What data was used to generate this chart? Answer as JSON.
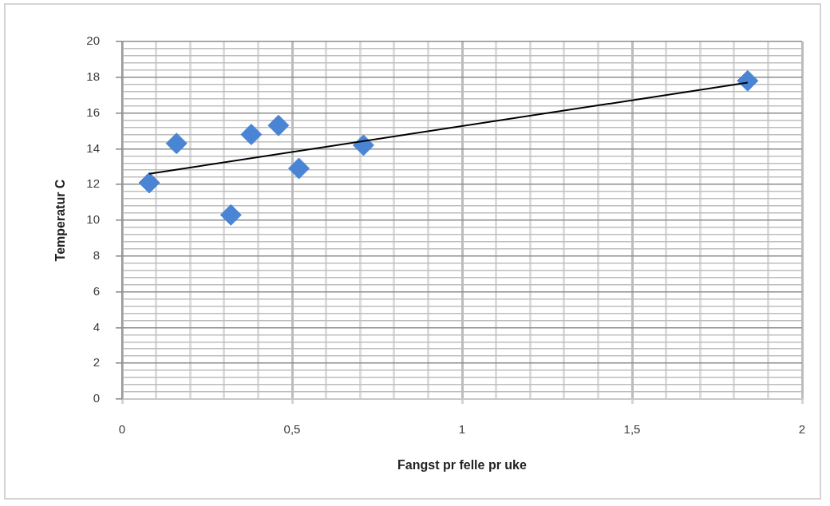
{
  "chart_data": {
    "type": "scatter",
    "xlabel": "Fangst pr felle pr uke",
    "ylabel": "Temperatur C",
    "xlim": [
      0,
      2
    ],
    "ylim": [
      0,
      20
    ],
    "xticks": [
      0,
      {
        "value": 0.1,
        "label": null
      },
      {
        "value": 0.2,
        "label": null
      },
      {
        "value": 0.3,
        "label": null
      },
      {
        "value": 0.4,
        "label": null
      },
      {
        "value": 0.5,
        "label": "0,5"
      },
      {
        "value": 0.6,
        "label": null
      },
      {
        "value": 0.7,
        "label": null
      },
      {
        "value": 0.8,
        "label": null
      },
      {
        "value": 0.9,
        "label": null
      },
      1,
      {
        "value": 1.1,
        "label": null
      },
      {
        "value": 1.2,
        "label": null
      },
      {
        "value": 1.3,
        "label": null
      },
      {
        "value": 1.4,
        "label": null
      },
      {
        "value": 1.5,
        "label": "1,5"
      },
      {
        "value": 1.6,
        "label": null
      },
      {
        "value": 1.7,
        "label": null
      },
      {
        "value": 1.8,
        "label": null
      },
      {
        "value": 1.9,
        "label": null
      },
      2
    ],
    "yticks": [
      0,
      {
        "value": 0.4,
        "label": null
      },
      {
        "value": 0.8,
        "label": null
      },
      {
        "value": 1.2,
        "label": null
      },
      {
        "value": 1.6,
        "label": null
      },
      2,
      {
        "value": 2.4,
        "label": null
      },
      {
        "value": 2.8,
        "label": null
      },
      {
        "value": 3.2,
        "label": null
      },
      {
        "value": 3.6,
        "label": null
      },
      4,
      {
        "value": 4.4,
        "label": null
      },
      {
        "value": 4.8,
        "label": null
      },
      {
        "value": 5.2,
        "label": null
      },
      {
        "value": 5.6,
        "label": null
      },
      6,
      {
        "value": 6.4,
        "label": null
      },
      {
        "value": 6.8,
        "label": null
      },
      {
        "value": 7.2,
        "label": null
      },
      {
        "value": 7.6,
        "label": null
      },
      8,
      {
        "value": 8.4,
        "label": null
      },
      {
        "value": 8.8,
        "label": null
      },
      {
        "value": 9.2,
        "label": null
      },
      {
        "value": 9.6,
        "label": null
      },
      10,
      {
        "value": 10.4,
        "label": null
      },
      {
        "value": 10.8,
        "label": null
      },
      {
        "value": 11.2,
        "label": null
      },
      {
        "value": 11.6,
        "label": null
      },
      12,
      {
        "value": 12.4,
        "label": null
      },
      {
        "value": 12.8,
        "label": null
      },
      {
        "value": 13.2,
        "label": null
      },
      {
        "value": 13.6,
        "label": null
      },
      14,
      {
        "value": 14.4,
        "label": null
      },
      {
        "value": 14.8,
        "label": null
      },
      {
        "value": 15.2,
        "label": null
      },
      {
        "value": 15.6,
        "label": null
      },
      16,
      {
        "value": 16.4,
        "label": null
      },
      {
        "value": 16.8,
        "label": null
      },
      {
        "value": 17.2,
        "label": null
      },
      {
        "value": 17.6,
        "label": null
      },
      18,
      {
        "value": 18.4,
        "label": null
      },
      {
        "value": 18.8,
        "label": null
      },
      {
        "value": 19.2,
        "label": null
      },
      {
        "value": 19.6,
        "label": null
      },
      20
    ],
    "grid": true,
    "marker": "diamond",
    "series": [
      {
        "color": "#4a85d5",
        "x": [
          0.08,
          0.16,
          0.32,
          0.38,
          0.46,
          0.52,
          0.71,
          1.84
        ],
        "values": [
          12.1,
          14.3,
          10.3,
          14.8,
          15.3,
          12.9,
          14.2,
          17.8
        ]
      },
      {
        "type": "line",
        "color": "#000000",
        "marker": "none",
        "x": [
          0.08,
          1.84
        ],
        "values": [
          12.6,
          17.7
        ]
      }
    ]
  }
}
